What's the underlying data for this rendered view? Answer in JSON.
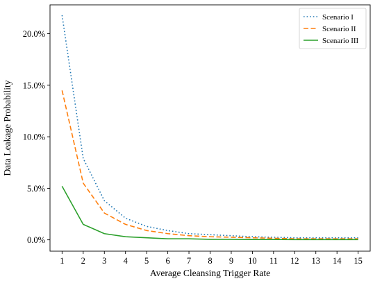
{
  "chart_data": {
    "type": "line",
    "title": "",
    "xlabel": "Average Cleansing Trigger Rate",
    "ylabel": "Data Leakage Probability",
    "x": [
      1,
      2,
      3,
      4,
      5,
      6,
      7,
      8,
      9,
      10,
      11,
      12,
      13,
      14,
      15
    ],
    "xlim": [
      0.43,
      15.57
    ],
    "ylim": [
      -0.011,
      0.228
    ],
    "xticks": [
      1,
      2,
      3,
      4,
      5,
      6,
      7,
      8,
      9,
      10,
      11,
      12,
      13,
      14,
      15
    ],
    "yticks": [
      0.0,
      0.05,
      0.1,
      0.15,
      0.2
    ],
    "ytick_labels": [
      "0.0%",
      "5.0%",
      "10.0%",
      "15.0%",
      "20.0%"
    ],
    "grid": false,
    "legend_position": "top-right",
    "series": [
      {
        "name": "Scenario I",
        "color": "#1f77b4",
        "linestyle": "dotted",
        "values": [
          0.218,
          0.079,
          0.038,
          0.021,
          0.013,
          0.009,
          0.006,
          0.005,
          0.004,
          0.003,
          0.0025,
          0.002,
          0.002,
          0.002,
          0.002
        ]
      },
      {
        "name": "Scenario II",
        "color": "#ff7f0e",
        "linestyle": "dashed",
        "values": [
          0.145,
          0.055,
          0.026,
          0.015,
          0.009,
          0.006,
          0.004,
          0.003,
          0.0025,
          0.002,
          0.0015,
          0.001,
          0.001,
          0.001,
          0.001
        ]
      },
      {
        "name": "Scenario III",
        "color": "#2ca02c",
        "linestyle": "solid",
        "values": [
          0.052,
          0.015,
          0.006,
          0.003,
          0.002,
          0.001,
          0.001,
          0.0005,
          0.0005,
          0.0003,
          0.0003,
          0.0002,
          0.0002,
          0.0002,
          0.0002
        ]
      }
    ]
  }
}
